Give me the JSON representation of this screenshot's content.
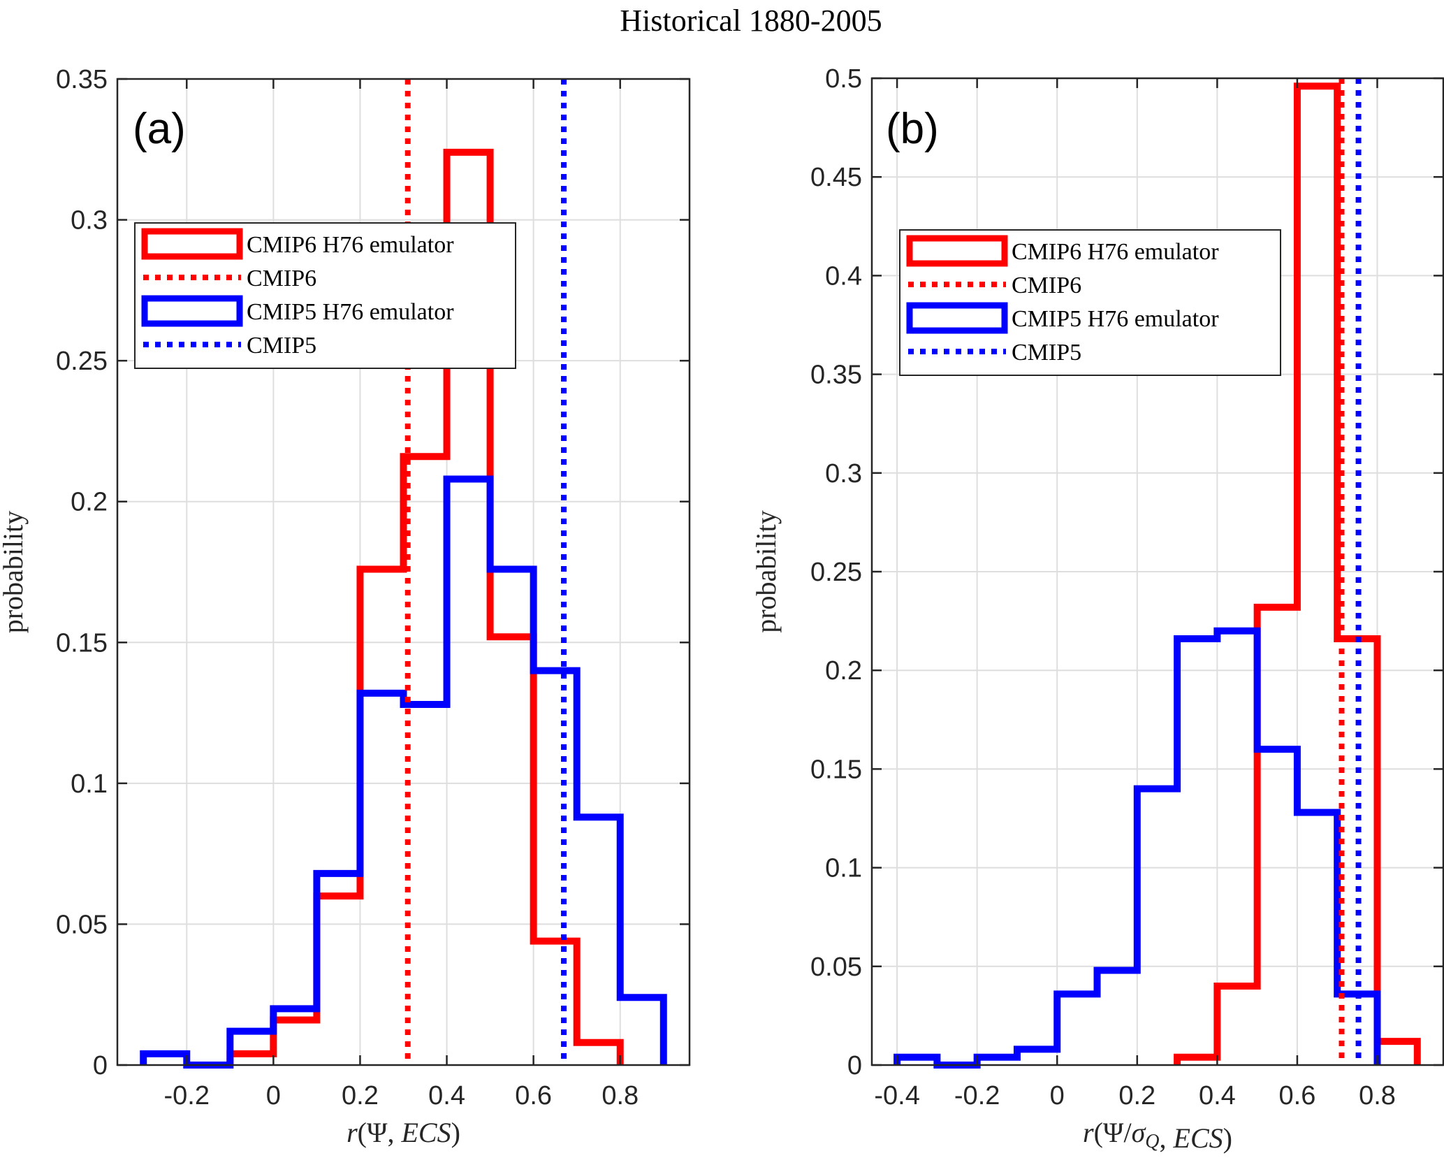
{
  "title": "Historical 1880-2005",
  "colors": {
    "cmip6": "#ff0000",
    "cmip5": "#0000ff",
    "axis": "#262626",
    "grid": "#dedede"
  },
  "chart_data": [
    {
      "type": "bar",
      "subtype": "stairs-histogram",
      "panel_label": "(a)",
      "title": "",
      "xlabel": "r(Ψ, ECS)",
      "ylabel": "probability",
      "xlim": [
        -0.36,
        0.96
      ],
      "ylim": [
        0,
        0.35
      ],
      "grid": true,
      "xticks": [
        -0.2,
        0,
        0.2,
        0.4,
        0.6,
        0.8
      ],
      "xtick_labels": [
        "-0.2",
        "0",
        "0.2",
        "0.4",
        "0.6",
        "0.8"
      ],
      "yticks": [
        0,
        0.05,
        0.1,
        0.15,
        0.2,
        0.25,
        0.3,
        0.35
      ],
      "ytick_labels": [
        "0",
        "0.05",
        "0.1",
        "0.15",
        "0.2",
        "0.25",
        "0.3",
        "0.35"
      ],
      "legend_position": "upper-left",
      "series": [
        {
          "name": "CMIP6 H76 emulator",
          "color_key": "cmip6",
          "style": "stairs",
          "bin_edges": [
            -0.1,
            0,
            0.1,
            0.2,
            0.3,
            0.4,
            0.5,
            0.6,
            0.7,
            0.8
          ],
          "values": [
            0.004,
            0.016,
            0.06,
            0.176,
            0.216,
            0.324,
            0.152,
            0.044,
            0.008
          ]
        },
        {
          "name": "CMIP6",
          "color_key": "cmip6",
          "style": "vline-dotted",
          "x": 0.31
        },
        {
          "name": "CMIP5 H76 emulator",
          "color_key": "cmip5",
          "style": "stairs",
          "bin_edges": [
            -0.3,
            -0.2,
            -0.1,
            0,
            0.1,
            0.2,
            0.3,
            0.4,
            0.5,
            0.6,
            0.7,
            0.8,
            0.9
          ],
          "values": [
            0.004,
            0,
            0.012,
            0.02,
            0.068,
            0.132,
            0.128,
            0.208,
            0.176,
            0.14,
            0.088,
            0.024
          ]
        },
        {
          "name": "CMIP5",
          "color_key": "cmip5",
          "style": "vline-dotted",
          "x": 0.67
        }
      ]
    },
    {
      "type": "bar",
      "subtype": "stairs-histogram",
      "panel_label": "(b)",
      "title": "",
      "xlabel": "r(Ψ/σ_Q, ECS)",
      "ylabel": "probability",
      "xlim": [
        -0.463,
        0.965
      ],
      "ylim": [
        0,
        0.5
      ],
      "grid": true,
      "xticks": [
        -0.4,
        -0.2,
        0,
        0.2,
        0.4,
        0.6,
        0.8
      ],
      "xtick_labels": [
        "-0.4",
        "-0.2",
        "0",
        "0.2",
        "0.4",
        "0.6",
        "0.8"
      ],
      "yticks": [
        0,
        0.05,
        0.1,
        0.15,
        0.2,
        0.25,
        0.3,
        0.35,
        0.4,
        0.45,
        0.5
      ],
      "ytick_labels": [
        "0",
        "0.05",
        "0.1",
        "0.15",
        "0.2",
        "0.25",
        "0.3",
        "0.35",
        "0.4",
        "0.45",
        "0.5"
      ],
      "legend_position": "upper-left",
      "series": [
        {
          "name": "CMIP6 H76 emulator",
          "color_key": "cmip6",
          "style": "stairs",
          "bin_edges": [
            0.3,
            0.4,
            0.5,
            0.6,
            0.7,
            0.8,
            0.9
          ],
          "values": [
            0.004,
            0.04,
            0.232,
            0.496,
            0.216,
            0.012
          ]
        },
        {
          "name": "CMIP6",
          "color_key": "cmip6",
          "style": "vline-dotted",
          "x": 0.711
        },
        {
          "name": "CMIP5 H76 emulator",
          "color_key": "cmip5",
          "style": "stairs",
          "bin_edges": [
            -0.4,
            -0.3,
            -0.2,
            -0.1,
            0,
            0.1,
            0.2,
            0.3,
            0.4,
            0.5,
            0.6,
            0.7,
            0.8
          ],
          "values": [
            0.004,
            0,
            0.004,
            0.008,
            0.036,
            0.048,
            0.14,
            0.216,
            0.22,
            0.16,
            0.128,
            0.036
          ]
        },
        {
          "name": "CMIP5",
          "color_key": "cmip5",
          "style": "vline-dotted",
          "x": 0.753
        }
      ]
    }
  ]
}
